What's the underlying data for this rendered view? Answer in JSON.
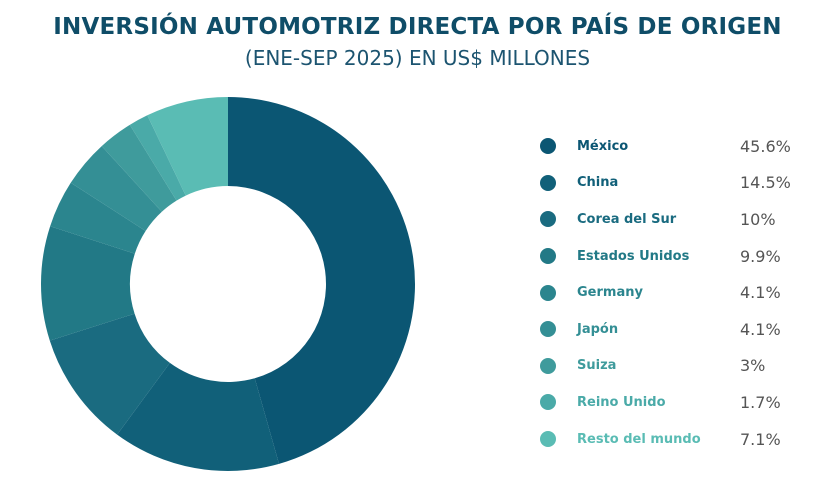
{
  "chart_data": {
    "type": "pie",
    "donut": true,
    "title": "INVERSIÓN AUTOMOTRIZ DIRECTA POR PAÍS DE ORIGEN",
    "subtitle": "(ENE-SEP 2025) EN US$ MILLONES",
    "legend_position": "right",
    "categories": [
      "México",
      "China",
      "Corea del Sur",
      "Estados Unidos",
      "Germany",
      "Japón",
      "Suiza",
      "Reino Unido",
      "Resto del mundo"
    ],
    "values": [
      45.6,
      14.5,
      10,
      9.9,
      4.1,
      4.1,
      3,
      1.7,
      7.1
    ],
    "value_labels": [
      "45.6%",
      "14.5%",
      "10%",
      "9.9%",
      "4.1%",
      "4.1%",
      "3%",
      "1.7%",
      "7.1%"
    ],
    "colors": [
      "#0b5673",
      "#116079",
      "#1a6b80",
      "#227986",
      "#2b858e",
      "#348f95",
      "#3f9b9c",
      "#4aaaa8",
      "#5abcb4"
    ]
  }
}
